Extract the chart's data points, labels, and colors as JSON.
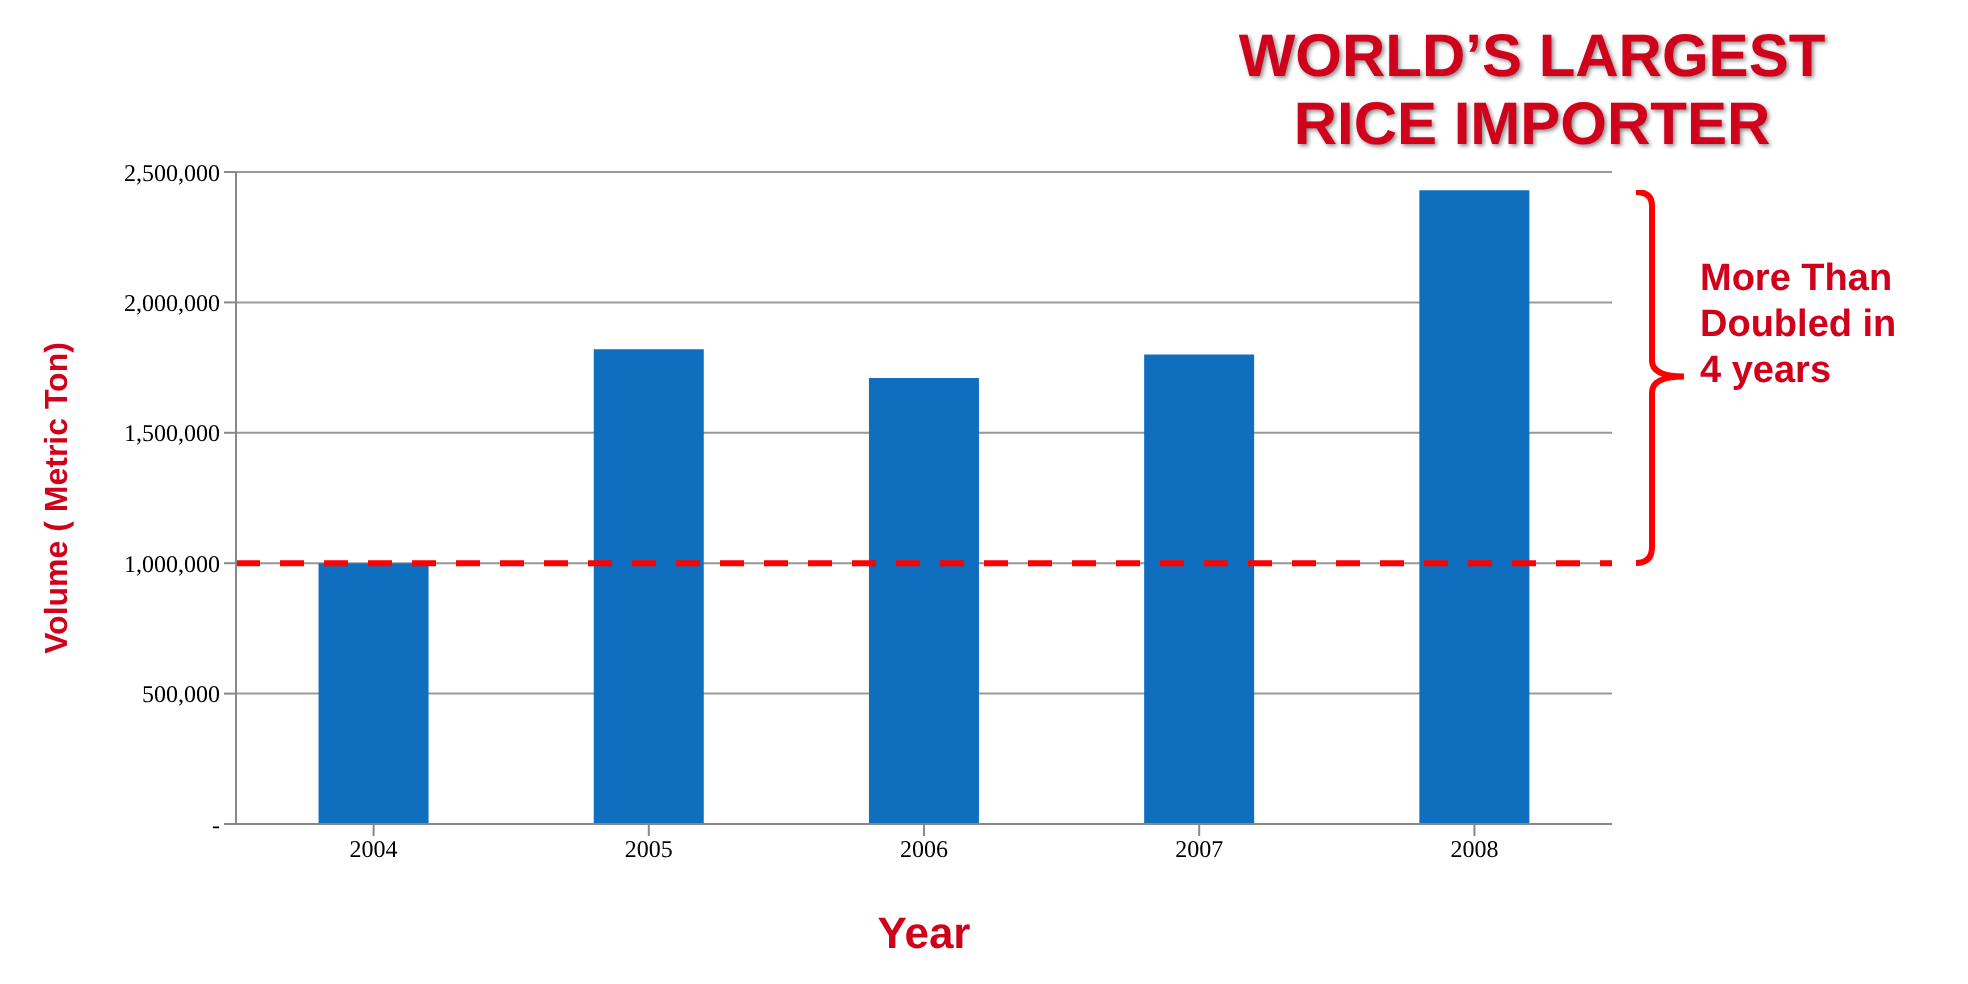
{
  "chart_data": {
    "type": "bar",
    "title": "WORLD’S LARGEST RICE IMPORTER",
    "xlabel": "Year",
    "ylabel": "Volume ( Metric Ton)",
    "categories": [
      "2004",
      "2005",
      "2006",
      "2007",
      "2008"
    ],
    "values": [
      1000000,
      1820000,
      1710000,
      1800000,
      2430000
    ],
    "color": "#106ebe",
    "ylim": [
      0,
      2500000
    ],
    "yticks": [
      {
        "value": 0,
        "label": "-"
      },
      {
        "value": 500000,
        "label": "500,000"
      },
      {
        "value": 1000000,
        "label": "1,000,000"
      },
      {
        "value": 1500000,
        "label": "1,500,000"
      },
      {
        "value": 2000000,
        "label": "2,000,000"
      },
      {
        "value": 2500000,
        "label": "2,500,000"
      }
    ],
    "grid": "y",
    "ref_lines": [
      {
        "axis": "y",
        "value": 1000000,
        "color": "#ff0000",
        "line_style": "dashed"
      }
    ],
    "annotations": [
      "More Than Doubled in 4 years"
    ]
  }
}
